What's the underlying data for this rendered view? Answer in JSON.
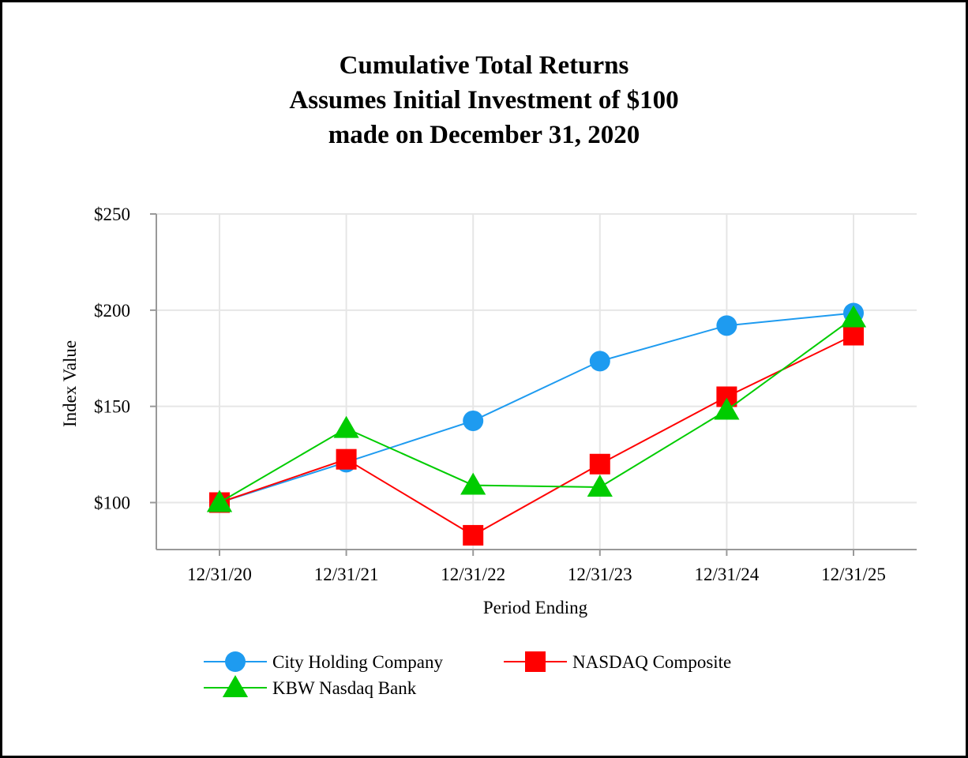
{
  "chart_data": {
    "type": "line",
    "title": [
      "Cumulative Total Returns",
      "Assumes Initial Investment of $100",
      "made on December 31, 2020"
    ],
    "xlabel": "Period Ending",
    "ylabel": "Index Value",
    "categories": [
      "12/31/20",
      "12/31/21",
      "12/31/22",
      "12/31/23",
      "12/31/24",
      "12/31/25"
    ],
    "y_ticks": [
      {
        "value": 100,
        "label": "$100"
      },
      {
        "value": 150,
        "label": "$150"
      },
      {
        "value": 200,
        "label": "$200"
      },
      {
        "value": 250,
        "label": "$250"
      }
    ],
    "ylim": [
      75,
      250
    ],
    "grid": true,
    "legend_position": "bottom",
    "series": [
      {
        "name": "City Holding Company",
        "marker": "circle",
        "color": "#1E9BF0",
        "values": [
          100,
          121,
          142.5,
          173.5,
          192,
          198.5
        ]
      },
      {
        "name": "NASDAQ Composite",
        "marker": "square",
        "color": "#FF0000",
        "values": [
          100,
          122.5,
          83,
          120,
          155,
          187
        ]
      },
      {
        "name": "KBW Nasdaq Bank",
        "marker": "triangle",
        "color": "#00CC00",
        "values": [
          100,
          138.5,
          109,
          108,
          148,
          196
        ]
      }
    ]
  }
}
